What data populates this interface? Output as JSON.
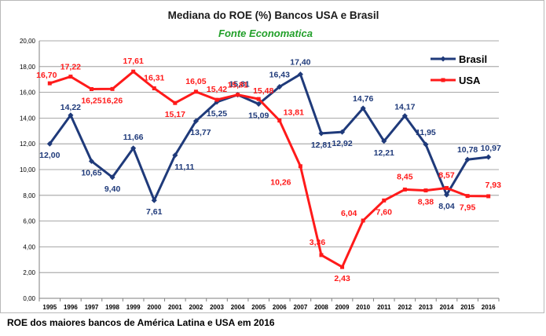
{
  "caption": "ROE dos maiores bancos de América Latina e USA em 2016",
  "chart_data": {
    "type": "line",
    "title": "Mediana do ROE  (%) Bancos USA e Brasil",
    "subtitle": "Fonte Economatica",
    "categories": [
      "1995",
      "1996",
      "1997",
      "1998",
      "1999",
      "2000",
      "2001",
      "2002",
      "2003",
      "2004",
      "2005",
      "2006",
      "2007",
      "2008",
      "2009",
      "2010",
      "2011",
      "2012",
      "2013",
      "2014",
      "2015",
      "2016"
    ],
    "series": [
      {
        "name": "Brasil",
        "color": "#1f3a7a",
        "values": [
          12.0,
          14.22,
          10.65,
          9.4,
          11.66,
          7.61,
          11.11,
          13.77,
          15.25,
          15.81,
          15.09,
          16.43,
          17.4,
          12.81,
          12.92,
          14.76,
          12.21,
          14.17,
          11.95,
          8.04,
          10.78,
          10.97
        ],
        "labels": [
          "12,00",
          "14,22",
          "10,65",
          "9,40",
          "11,66",
          "7,61",
          "11,11",
          "13,77",
          "15,25",
          "15,81",
          "15,09",
          "16,43",
          "17,40",
          "12,81",
          "12,92",
          "14,76",
          "12,21",
          "14,17",
          "11,95",
          "8,04",
          "10,78",
          "10,97"
        ]
      },
      {
        "name": "USA",
        "color": "#ff1a1a",
        "values": [
          16.7,
          17.22,
          16.25,
          16.26,
          17.61,
          16.31,
          15.17,
          16.05,
          15.42,
          15.81,
          15.48,
          13.81,
          10.26,
          3.36,
          2.43,
          6.04,
          7.6,
          8.45,
          8.38,
          8.57,
          7.95,
          7.93
        ],
        "labels": [
          "16,70",
          "17,22",
          "16,25",
          "16,26",
          "17,61",
          "16,31",
          "15,17",
          "16,05",
          "15,42",
          "15,81",
          "15,48",
          "13,81",
          "10,26",
          "3,36",
          "2,43",
          "6,04",
          "7,60",
          "8,45",
          "8,38",
          "8,57",
          "7,95",
          "7,93"
        ]
      }
    ],
    "ylim": [
      0,
      20
    ],
    "yticks": [
      "0,00",
      "2,00",
      "4,00",
      "6,00",
      "8,00",
      "10,00",
      "12,00",
      "14,00",
      "16,00",
      "18,00",
      "20,00"
    ],
    "grid": true,
    "legend_position": "top-right"
  }
}
